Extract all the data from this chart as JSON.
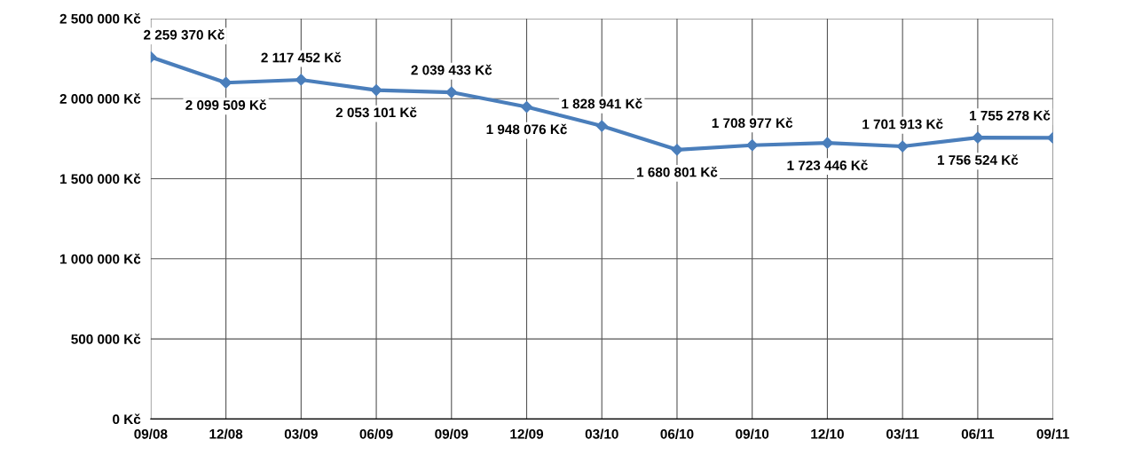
{
  "chart_data": {
    "type": "line",
    "categories": [
      "09/08",
      "12/08",
      "03/09",
      "06/09",
      "09/09",
      "12/09",
      "03/10",
      "06/10",
      "09/10",
      "12/10",
      "03/11",
      "06/11",
      "09/11"
    ],
    "values": [
      2259370,
      2099509,
      2117452,
      2053101,
      2039433,
      1948076,
      1828941,
      1680801,
      1708977,
      1723446,
      1701913,
      1756524,
      1755278
    ],
    "value_labels": [
      "2 259 370 Kč",
      "2 099 509 Kč",
      "2 117 452 Kč",
      "2 053 101 Kč",
      "2 039 433 Kč",
      "1 948 076 Kč",
      "1 828 941 Kč",
      "1 680 801 Kč",
      "1 708 977 Kč",
      "1 723 446 Kč",
      "1 701 913 Kč",
      "1 756 524 Kč",
      "1 755 278 Kč"
    ],
    "color": "#4a7ebb",
    "marker": "diamond",
    "line_style": "solid",
    "grid": true,
    "ylim": [
      0,
      2500000
    ],
    "yticks": [
      {
        "value": 0,
        "label": "0 Kč"
      },
      {
        "value": 500000,
        "label": "500 000 Kč"
      },
      {
        "value": 1000000,
        "label": "1 000 000 Kč"
      },
      {
        "value": 1500000,
        "label": "1 500 000 Kč"
      },
      {
        "value": 2000000,
        "label": "2 000 000 Kč"
      },
      {
        "value": 2500000,
        "label": "2 500 000 Kč"
      }
    ]
  }
}
